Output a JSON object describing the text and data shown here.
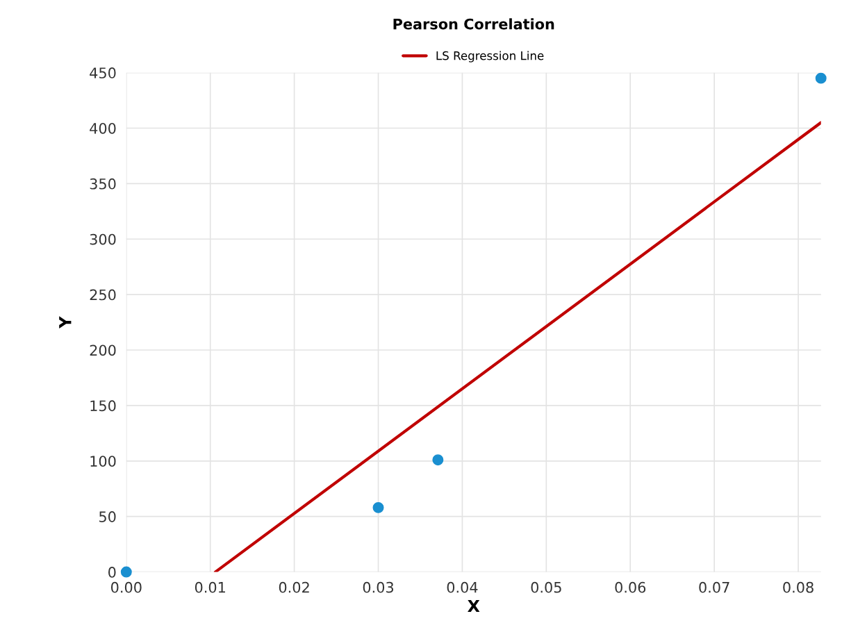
{
  "chart_data": {
    "type": "scatter",
    "title": "Pearson Correlation",
    "xlabel": "X",
    "ylabel": "Y",
    "series": [
      {
        "marker": "circle",
        "color": "#1a8fd0",
        "x": [
          0.0,
          0.03,
          0.0371,
          0.0827
        ],
        "values": [
          0,
          58,
          101,
          445
        ]
      },
      {
        "type": "line",
        "name": "LS Regression Line",
        "color": "#c00000",
        "x": [
          0.0106,
          0.0827
        ],
        "values": [
          0,
          405
        ]
      }
    ],
    "xlim": [
      0,
      0.0827
    ],
    "ylim": [
      0,
      450
    ],
    "xticks": [
      {
        "value": 0,
        "label": "0.00"
      },
      {
        "value": 0.01,
        "label": "0.01"
      },
      {
        "value": 0.02,
        "label": "0.02"
      },
      {
        "value": 0.03,
        "label": "0.03"
      },
      {
        "value": 0.04,
        "label": "0.04"
      },
      {
        "value": 0.05,
        "label": "0.05"
      },
      {
        "value": 0.06,
        "label": "0.06"
      },
      {
        "value": 0.07,
        "label": "0.07"
      },
      {
        "value": 0.08,
        "label": "0.08"
      }
    ],
    "yticks": [
      0,
      50,
      100,
      150,
      200,
      250,
      300,
      350,
      400,
      450
    ],
    "grid": true,
    "legend": "top"
  }
}
